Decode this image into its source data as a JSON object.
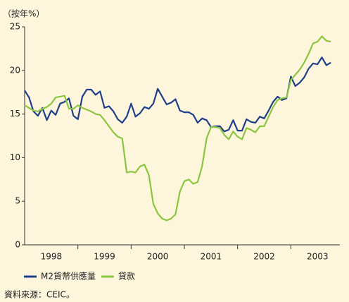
{
  "chart_data": {
    "type": "line",
    "y_label": "（按年%）",
    "source": "資料來源：CEIC。",
    "x": [
      1998.0,
      1998.083,
      1998.167,
      1998.25,
      1998.333,
      1998.417,
      1998.5,
      1998.583,
      1998.667,
      1998.75,
      1998.833,
      1998.917,
      1999.0,
      1999.083,
      1999.167,
      1999.25,
      1999.333,
      1999.417,
      1999.5,
      1999.583,
      1999.667,
      1999.75,
      1999.833,
      1999.917,
      2000.0,
      2000.083,
      2000.167,
      2000.25,
      2000.333,
      2000.417,
      2000.5,
      2000.583,
      2000.667,
      2000.75,
      2000.833,
      2000.917,
      2001.0,
      2001.083,
      2001.167,
      2001.25,
      2001.333,
      2001.417,
      2001.5,
      2001.583,
      2001.667,
      2001.75,
      2001.833,
      2001.917,
      2002.0,
      2002.083,
      2002.167,
      2002.25,
      2002.333,
      2002.417,
      2002.5,
      2002.583,
      2002.667,
      2002.75,
      2002.833,
      2002.917,
      2003.0,
      2003.083,
      2003.167,
      2003.25,
      2003.333,
      2003.417,
      2003.5,
      2003.583,
      2003.667,
      2003.75
    ],
    "series": [
      {
        "name": "M2貨幣供應量",
        "color": "#1f3f8a",
        "values": [
          17.7,
          16.9,
          15.3,
          14.8,
          15.7,
          14.3,
          15.4,
          14.9,
          16.2,
          16.4,
          16.8,
          14.8,
          14.4,
          17.0,
          17.8,
          17.8,
          17.2,
          17.6,
          15.7,
          15.9,
          15.3,
          14.4,
          14.0,
          14.7,
          16.2,
          14.7,
          15.1,
          15.8,
          15.6,
          16.2,
          17.9,
          17.0,
          16.1,
          16.3,
          16.7,
          15.4,
          15.2,
          15.2,
          14.9,
          14.0,
          14.5,
          14.3,
          13.5,
          13.6,
          13.6,
          13.0,
          13.2,
          14.3,
          13.1,
          13.1,
          14.4,
          14.1,
          14.0,
          14.7,
          14.5,
          15.4,
          16.4,
          17.0,
          16.6,
          16.8,
          19.3,
          18.2,
          18.6,
          19.2,
          20.2,
          20.8,
          20.7,
          21.5,
          20.6,
          20.9
        ]
      },
      {
        "name": "貸款",
        "color": "#8cc63f",
        "values": [
          16.0,
          15.7,
          15.4,
          15.3,
          15.6,
          15.8,
          16.2,
          16.9,
          17.0,
          17.1,
          15.6,
          15.6,
          16.0,
          15.7,
          15.5,
          15.3,
          15.0,
          14.9,
          14.3,
          13.6,
          12.9,
          12.4,
          12.2,
          8.3,
          8.4,
          8.3,
          9.0,
          9.2,
          8.0,
          4.7,
          3.6,
          3.0,
          2.8,
          3.0,
          3.5,
          6.1,
          7.3,
          7.5,
          7.0,
          7.2,
          9.0,
          12.2,
          13.5,
          13.5,
          13.4,
          12.6,
          12.1,
          13.0,
          12.4,
          12.1,
          13.4,
          13.2,
          12.9,
          13.6,
          13.6,
          14.7,
          15.8,
          16.6,
          16.8,
          16.9,
          18.9,
          19.5,
          20.1,
          20.9,
          21.9,
          23.1,
          23.3,
          23.9,
          23.4,
          23.3
        ]
      }
    ],
    "xlim": [
      1998,
      2003.92
    ],
    "xticks": [
      {
        "value": 1998.5,
        "label": "1998"
      },
      {
        "value": 1999.5,
        "label": "1999"
      },
      {
        "value": 2000.5,
        "label": "2000"
      },
      {
        "value": 2001.5,
        "label": "2001"
      },
      {
        "value": 2002.5,
        "label": "2002"
      },
      {
        "value": 2003.5,
        "label": "2003"
      }
    ],
    "ylim": [
      0,
      25
    ],
    "yticks": [
      0,
      5,
      10,
      15,
      20,
      25
    ]
  }
}
